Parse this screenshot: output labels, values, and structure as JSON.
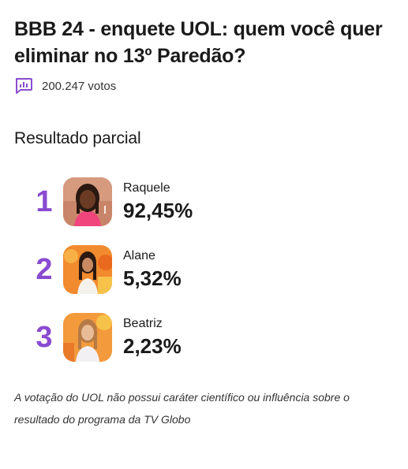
{
  "poll": {
    "title": "BBB 24 - enquete UOL: quem você quer eliminar no 13º Paredão?",
    "votes_icon": "poll-chart-icon",
    "votes": "200.247 votos",
    "section_title": "Resultado parcial",
    "accent_color": "#8a4bd0",
    "results": [
      {
        "rank": "1",
        "name": "Raquele",
        "percent": "92,45%",
        "share": 0.9245
      },
      {
        "rank": "2",
        "name": "Alane",
        "percent": "5,32%",
        "share": 0.0532
      },
      {
        "rank": "3",
        "name": "Beatriz",
        "percent": "2,23%",
        "share": 0.0223
      }
    ],
    "disclaimer": "A votação do UOL não possui caráter científico ou influência sobre o resultado do programa da TV Globo"
  }
}
